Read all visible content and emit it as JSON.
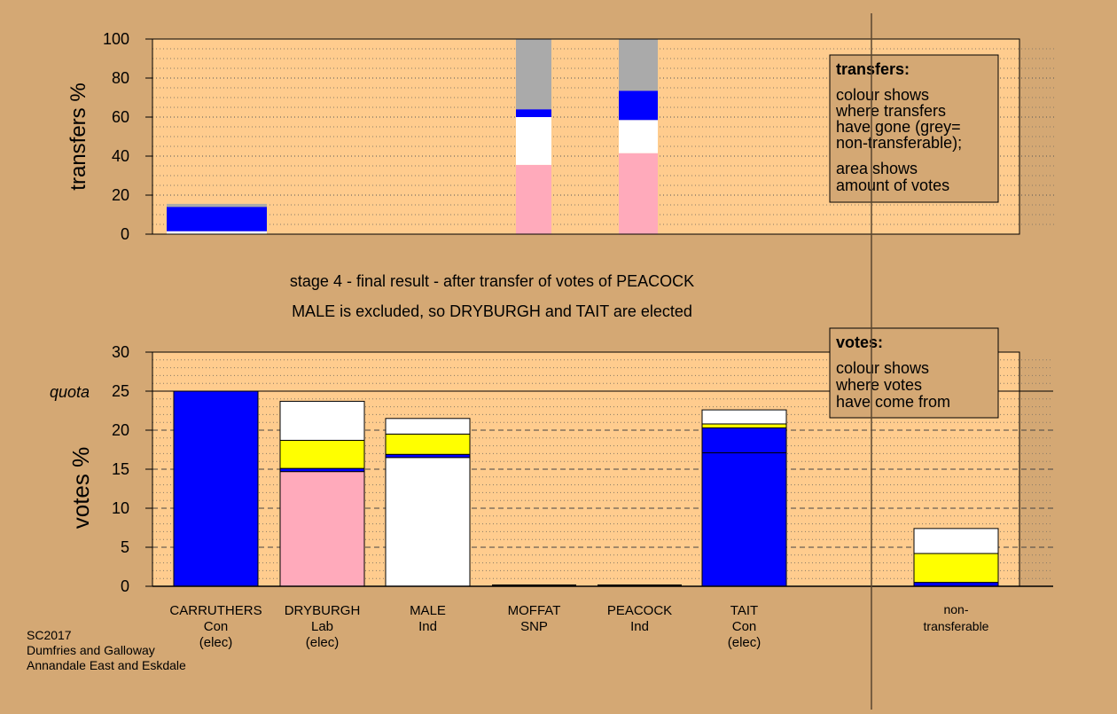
{
  "colors": {
    "background": "#d4a874",
    "plot": "#ffcc8e",
    "Con": "#0000ff",
    "Lab": "#ffaabb",
    "Ind_male": "#ffffff",
    "SNP": "#ffff00",
    "Ind_peacock": "#ffffff",
    "non_transferable": "#aaaaaa"
  },
  "captions": {
    "line1": "stage 4 - final result - after transfer of votes of PEACOCK",
    "line2": "MALE is excluded, so DRYBURGH and TAIT are elected"
  },
  "legend_transfers": {
    "title": "transfers:",
    "lines": [
      "colour shows",
      "where transfers",
      "have gone (grey=",
      "non-transferable);"
    ],
    "lines2": [
      "area shows",
      "amount of votes"
    ]
  },
  "legend_votes": {
    "title": "votes:",
    "lines": [
      "colour shows",
      "where votes",
      "have come from"
    ]
  },
  "footer": [
    "SC2017",
    "Dumfries and Galloway",
    "Annandale East and Eskdale"
  ],
  "chart_data": [
    {
      "type": "bar",
      "ylabel": "transfers %",
      "ylim": [
        0,
        100
      ],
      "yticks": [
        0,
        20,
        40,
        60,
        80,
        100
      ],
      "grid": true,
      "categories": [
        "CARRUTHERS",
        "DRYBURGH",
        "MALE",
        "MOFFAT",
        "PEACOCK",
        "TAIT"
      ],
      "stacks": [
        {
          "category": "CARRUTHERS",
          "segments": [
            {
              "source": "Ind_male",
              "value": 1.5
            },
            {
              "source": "Con",
              "value": 12.5
            },
            {
              "source": "non_transferable",
              "value": 1.5
            }
          ]
        },
        {
          "category": "DRYBURGH",
          "segments": []
        },
        {
          "category": "MALE",
          "segments": []
        },
        {
          "category": "MOFFAT",
          "segments": [
            {
              "source": "Lab",
              "value": 35.5
            },
            {
              "source": "Ind_male",
              "value": 24.5
            },
            {
              "source": "Con",
              "value": 4
            },
            {
              "source": "non_transferable",
              "value": 36
            }
          ]
        },
        {
          "category": "PEACOCK",
          "segments": [
            {
              "source": "Lab",
              "value": 41.5
            },
            {
              "source": "Ind_male",
              "value": 17
            },
            {
              "source": "Con",
              "value": 15
            },
            {
              "source": "non_transferable",
              "value": 26.5
            }
          ]
        },
        {
          "category": "TAIT",
          "segments": []
        }
      ]
    },
    {
      "type": "bar",
      "ylabel": "votes %",
      "ylim": [
        0,
        30
      ],
      "yticks": [
        0,
        5,
        10,
        15,
        20,
        25,
        30
      ],
      "quota": 25,
      "quota_label": "quota",
      "grid": true,
      "candidates": [
        {
          "name": "CARRUTHERS",
          "party": "Con",
          "status": "(elec)"
        },
        {
          "name": "DRYBURGH",
          "party": "Lab",
          "status": "(elec)"
        },
        {
          "name": "MALE",
          "party": "Ind",
          "status": ""
        },
        {
          "name": "MOFFAT",
          "party": "SNP",
          "status": ""
        },
        {
          "name": "PEACOCK",
          "party": "Ind",
          "status": ""
        },
        {
          "name": "TAIT",
          "party": "Con",
          "status": "(elec)"
        }
      ],
      "non_transferable_label": [
        "non-",
        "transferable"
      ],
      "stacks": [
        {
          "category": "CARRUTHERS",
          "segments": [
            {
              "source": "Con",
              "value": 25
            }
          ]
        },
        {
          "category": "DRYBURGH",
          "segments": [
            {
              "source": "Lab",
              "value": 14.7
            },
            {
              "source": "Con",
              "value": 0.4
            },
            {
              "source": "SNP",
              "value": 3.6
            },
            {
              "source": "Ind_male",
              "value": 5
            }
          ]
        },
        {
          "category": "MALE",
          "segments": [
            {
              "source": "Ind_male",
              "value": 16.5
            },
            {
              "source": "Con",
              "value": 0.4
            },
            {
              "source": "SNP",
              "value": 2.6
            },
            {
              "source": "Ind_peacock",
              "value": 2
            }
          ]
        },
        {
          "category": "MOFFAT",
          "segments": []
        },
        {
          "category": "PEACOCK",
          "segments": []
        },
        {
          "category": "TAIT",
          "segments": [
            {
              "source": "Con",
              "value": 17.1
            },
            {
              "source": "Con",
              "value": 3.2
            },
            {
              "source": "SNP",
              "value": 0.5
            },
            {
              "source": "Ind_peacock",
              "value": 1.8
            }
          ]
        },
        {
          "category": "non-transferable",
          "segments": [
            {
              "source": "Con",
              "value": 0.5
            },
            {
              "source": "SNP",
              "value": 3.7
            },
            {
              "source": "Ind_peacock",
              "value": 3.2
            }
          ]
        }
      ]
    }
  ]
}
